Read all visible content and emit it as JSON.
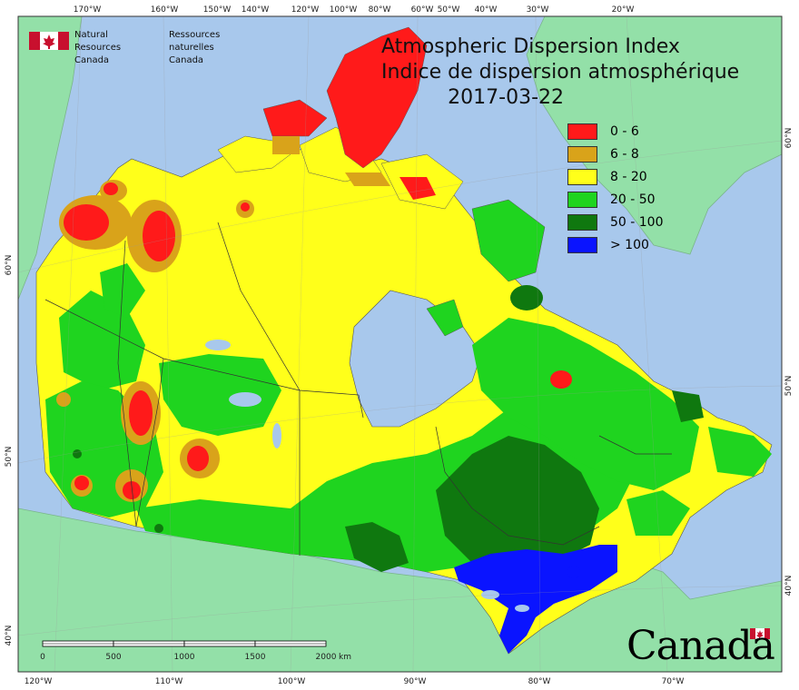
{
  "title_en": "Atmospheric Dispersion Index",
  "title_fr": "Indice de dispersion atmosphérique",
  "date": "2017-03-22",
  "agency": {
    "name_en_line1": "Natural Resources",
    "name_en_line2": "Canada",
    "name_fr_line1": "Ressources naturelles",
    "name_fr_line2": "Canada"
  },
  "legend": [
    {
      "label": "0 - 6",
      "color": "#ff1a1a"
    },
    {
      "label": "6 - 8",
      "color": "#d9a31a"
    },
    {
      "label": "8 - 20",
      "color": "#ffff1a"
    },
    {
      "label": "20 - 50",
      "color": "#1fd41f"
    },
    {
      "label": "50 - 100",
      "color": "#0f780f"
    },
    {
      "label": "> 100",
      "color": "#0a14ff"
    }
  ],
  "top_longitudes": [
    "170°W",
    "160°W",
    "150°W",
    "140°W",
    "120°W",
    "100°W",
    "80°W",
    "60°W",
    "50°W",
    "40°W",
    "30°W",
    "20°W"
  ],
  "bottom_longitudes": [
    "120°W",
    "110°W",
    "100°W",
    "90°W",
    "80°W",
    "70°W"
  ],
  "left_latitudes": [
    "60°N",
    "50°N",
    "40°N"
  ],
  "right_latitudes": [
    "60°N",
    "50°N",
    "40°N"
  ],
  "scale_bar": {
    "labels": [
      "0",
      "500",
      "1000",
      "1500",
      "2000"
    ],
    "unit": "km"
  },
  "wordmark": "Canada",
  "colors": {
    "ocean": "#a8c8ec",
    "land": "#93e0a8"
  }
}
